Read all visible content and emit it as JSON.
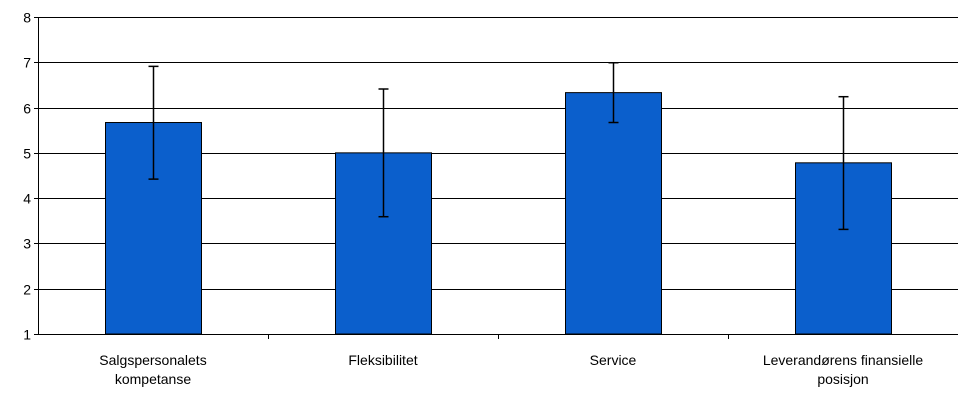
{
  "chart_data": {
    "type": "bar",
    "title": "",
    "xlabel": "",
    "ylabel": "",
    "categories": [
      [
        "Salgspersonalets",
        "kompetanse"
      ],
      [
        "Fleksibilitet"
      ],
      [
        "Service"
      ],
      [
        "Leverandørens finansielle",
        "posisjon"
      ]
    ],
    "values": [
      5.67,
      5.0,
      6.33,
      4.78
    ],
    "error_low": [
      4.42,
      3.59,
      5.67,
      3.31
    ],
    "error_high": [
      6.91,
      6.41,
      6.99,
      6.24
    ],
    "ylim": [
      1,
      8
    ],
    "yticks": [
      1,
      2,
      3,
      4,
      5,
      6,
      7,
      8
    ],
    "grid": true,
    "legend": "none",
    "colors": {
      "bar_fill": "#0b5fcc",
      "bar_stroke": "#000000",
      "grid": "#000000",
      "axis": "#000000",
      "error_bar": "#000000"
    }
  }
}
